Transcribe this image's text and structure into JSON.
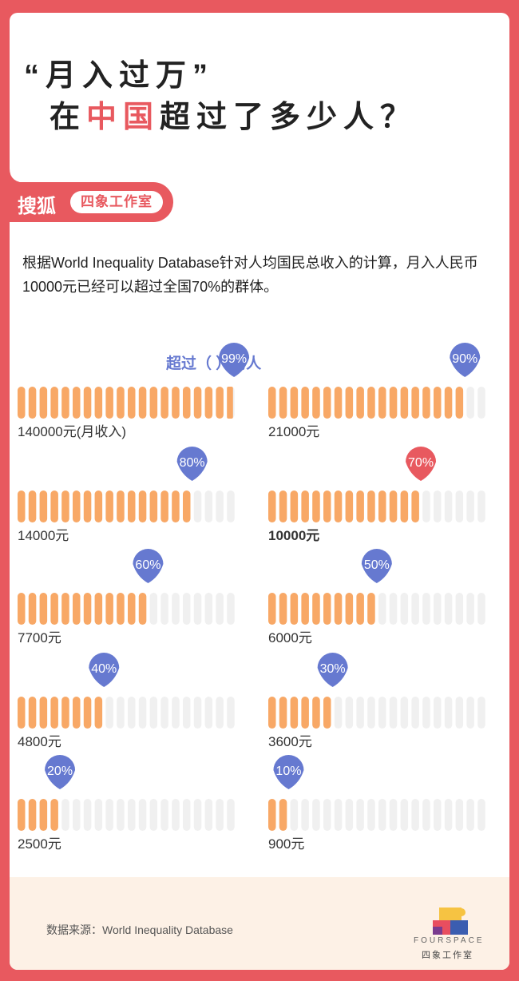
{
  "title": {
    "line1": "“月入过万”",
    "line2_pre": "在",
    "line2_highlight": "中国",
    "line2_post": "超过了多少人？"
  },
  "brand": {
    "sohu": "搜狐",
    "studio": "四象工作室"
  },
  "description": "根据World Inequality Database针对人均国民总收入的计算，月入人民币10000元已经可以超过全国70%的群体。",
  "legend": {
    "pre": "超过（",
    "value": "99%",
    "post": "）的人"
  },
  "footer": {
    "source": "数据来源：World Inequality Database",
    "logo_en": "FOURSPACE",
    "logo_cn": "四象工作室"
  },
  "colors": {
    "accent": "#e8595f",
    "bar_fill": "#f8a866",
    "bar_empty": "#f0f0f0",
    "marker": "#6679d0",
    "marker_highlight": "#e8595f"
  },
  "chart_data": {
    "type": "bar",
    "title": "超过（ ）的人",
    "categories": [
      "140000元(月收入)",
      "21000元",
      "14000元",
      "10000元",
      "7700元",
      "6000元",
      "4800元",
      "3600元",
      "2500元",
      "900元"
    ],
    "series": [
      {
        "values": [
          99,
          90,
          80,
          70,
          60,
          50,
          40,
          30,
          20,
          10
        ]
      }
    ],
    "labels": [
      "99%",
      "90%",
      "80%",
      "70%",
      "60%",
      "50%",
      "40%",
      "30%",
      "20%",
      "10%"
    ],
    "highlight": "10000元",
    "ylim": [
      0,
      100
    ]
  }
}
